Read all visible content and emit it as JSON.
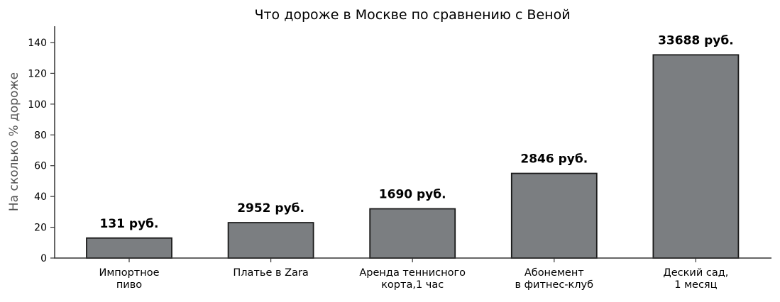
{
  "chart_data": {
    "type": "bar",
    "title": "Что дороже в Москве по сравнению с Веной",
    "xlabel": "",
    "ylabel": "На сколько % дороже",
    "ylim": [
      0,
      150
    ],
    "yticks": [
      0,
      20,
      40,
      60,
      80,
      100,
      120,
      140
    ],
    "grid": false,
    "legend": null,
    "categories": [
      "Импортное\nпиво",
      "Платье в Zara",
      "Аренда теннисного\nкорта,1 час",
      "Абонемент\nв фитнес-клуб",
      "Деский сад,\n1 месяц"
    ],
    "values": [
      13,
      23,
      32,
      55,
      132
    ],
    "annotations": [
      "131 руб.",
      "2952 руб.",
      "1690 руб.",
      "2846 руб.",
      "33688 руб."
    ],
    "bar_color": "#7b7e81",
    "edge_color": "#1a1a1a"
  }
}
